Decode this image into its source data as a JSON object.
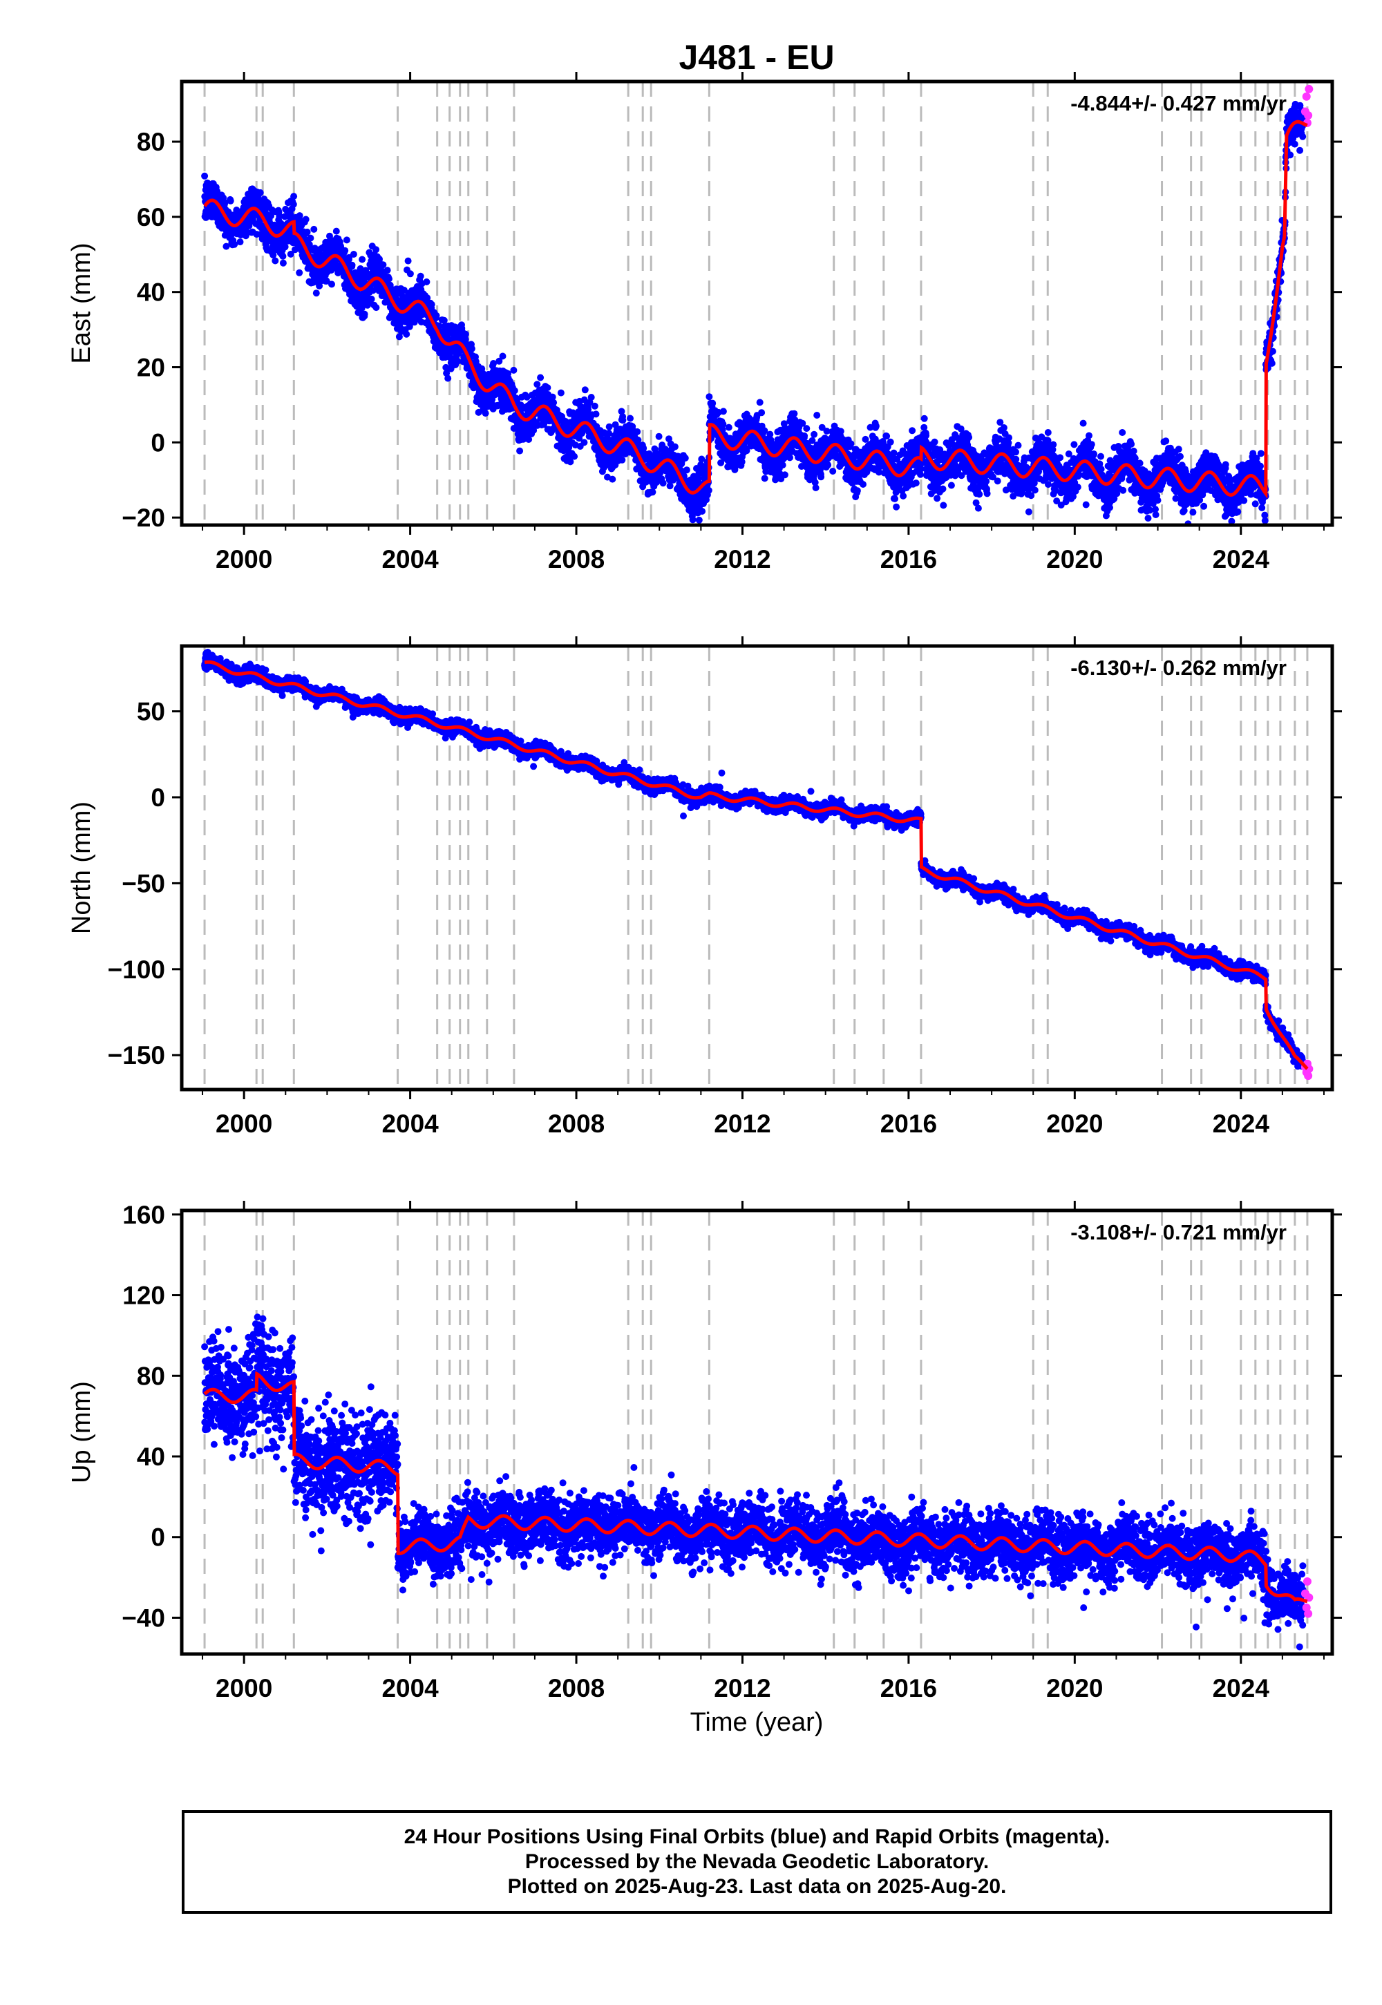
{
  "title": "J481 - EU",
  "xlabel": "Time (year)",
  "footer": {
    "line1": "24 Hour Positions Using Final Orbits (blue) and Rapid Orbits (magenta).",
    "line2": "Processed by the Nevada Geodetic Laboratory.",
    "line3": "Plotted on 2025-Aug-23. Last data on 2025-Aug-20."
  },
  "colors": {
    "final_orbits": "#0000ff",
    "rapid_orbits": "#ff33ff",
    "model": "#ff0000",
    "event_lines": "#bbbbbb"
  },
  "chart_data": [
    {
      "type": "scatter",
      "name": "east",
      "ylabel": "East (mm)",
      "rate_label": "-4.844+/- 0.427 mm/yr",
      "xlim": [
        1998.5,
        2026.2
      ],
      "ylim": [
        -22,
        96
      ],
      "xticks": [
        2000,
        2004,
        2008,
        2012,
        2016,
        2020,
        2024
      ],
      "yticks": [
        -20,
        0,
        20,
        40,
        60,
        80
      ],
      "event_lines": [
        1999.05,
        2000.3,
        2000.45,
        2001.2,
        2003.7,
        2004.65,
        2004.95,
        2005.2,
        2005.4,
        2005.85,
        2006.5,
        2009.25,
        2009.6,
        2009.8,
        2011.2,
        2014.2,
        2014.7,
        2015.4,
        2016.3,
        2019.0,
        2019.35,
        2022.1,
        2022.8,
        2023.05,
        2024.0,
        2024.35,
        2024.65,
        2024.95,
        2025.3,
        2025.6
      ],
      "model_trend": [
        [
          1999.05,
          62
        ],
        [
          2000.45,
          59
        ],
        [
          2001.2,
          56
        ],
        [
          2001.2,
          53
        ],
        [
          2003.7,
          38
        ],
        [
          2004.65,
          32
        ],
        [
          2004.95,
          27
        ],
        [
          2005.4,
          21
        ],
        [
          2005.85,
          16
        ],
        [
          2006.5,
          10
        ],
        [
          2009.25,
          -2
        ],
        [
          2011.2,
          -13
        ],
        [
          2011.2,
          2
        ],
        [
          2016.3,
          -7
        ],
        [
          2016.3,
          -4
        ],
        [
          2024.6,
          -12
        ],
        [
          2024.6,
          22
        ],
        [
          2025.0,
          52
        ],
        [
          2025.05,
          54
        ],
        [
          2025.1,
          80
        ],
        [
          2025.6,
          86
        ]
      ],
      "seasonal_amplitude": 3.5,
      "scatter_sd": 2.8,
      "rapid_points": [
        [
          2025.55,
          88
        ],
        [
          2025.58,
          92
        ],
        [
          2025.6,
          85
        ],
        [
          2025.62,
          87
        ],
        [
          2025.64,
          94
        ]
      ]
    },
    {
      "type": "scatter",
      "name": "north",
      "ylabel": "North (mm)",
      "rate_label": "-6.130+/- 0.262 mm/yr",
      "xlim": [
        1998.5,
        2026.2
      ],
      "ylim": [
        -170,
        88
      ],
      "xticks": [
        2000,
        2004,
        2008,
        2012,
        2016,
        2020,
        2024
      ],
      "yticks": [
        -150,
        -100,
        -50,
        0,
        50
      ],
      "event_lines": [
        1999.05,
        2000.3,
        2000.45,
        2001.2,
        2003.7,
        2004.65,
        2004.95,
        2005.2,
        2005.4,
        2005.85,
        2006.5,
        2009.25,
        2009.6,
        2009.8,
        2011.2,
        2014.2,
        2014.7,
        2015.4,
        2016.3,
        2019.0,
        2019.35,
        2022.1,
        2022.8,
        2023.05,
        2024.0,
        2024.35,
        2024.65,
        2024.95,
        2025.3,
        2025.6
      ],
      "model_trend": [
        [
          1999.05,
          78
        ],
        [
          2004.65,
          43
        ],
        [
          2011.0,
          0
        ],
        [
          2011.2,
          1
        ],
        [
          2016.3,
          -14
        ],
        [
          2016.3,
          -42
        ],
        [
          2024.6,
          -105
        ],
        [
          2024.6,
          -122
        ],
        [
          2025.3,
          -152
        ],
        [
          2025.6,
          -157
        ]
      ],
      "seasonal_amplitude": 2.0,
      "scatter_sd": 2.0,
      "rapid_points": [
        [
          2025.55,
          -157
        ],
        [
          2025.58,
          -160
        ],
        [
          2025.6,
          -155
        ],
        [
          2025.62,
          -162
        ],
        [
          2025.64,
          -158
        ]
      ]
    },
    {
      "type": "scatter",
      "name": "up",
      "ylabel": "Up (mm)",
      "rate_label": "-3.108+/- 0.721 mm/yr",
      "xlim": [
        1998.5,
        2026.2
      ],
      "ylim": [
        -58,
        162
      ],
      "xticks": [
        2000,
        2004,
        2008,
        2012,
        2016,
        2020,
        2024
      ],
      "yticks": [
        -40,
        0,
        40,
        80,
        120,
        160
      ],
      "event_lines": [
        1999.05,
        2000.3,
        2000.45,
        2001.2,
        2003.7,
        2004.65,
        2004.95,
        2005.2,
        2005.4,
        2005.85,
        2006.5,
        2009.25,
        2009.6,
        2009.8,
        2011.2,
        2014.2,
        2014.7,
        2015.4,
        2016.3,
        2019.0,
        2019.35,
        2022.1,
        2022.8,
        2023.05,
        2024.0,
        2024.35,
        2024.65,
        2024.95,
        2025.3,
        2025.6
      ],
      "model_trend": [
        [
          1999.05,
          70
        ],
        [
          2000.3,
          70
        ],
        [
          2000.3,
          78
        ],
        [
          2001.2,
          74
        ],
        [
          2001.2,
          38
        ],
        [
          2003.7,
          34
        ],
        [
          2003.7,
          -5
        ],
        [
          2005.2,
          -3
        ],
        [
          2005.4,
          8
        ],
        [
          2009.25,
          5
        ],
        [
          2024.0,
          -9
        ],
        [
          2024.6,
          -12
        ],
        [
          2024.6,
          -22
        ],
        [
          2025.3,
          -34
        ],
        [
          2025.6,
          -30
        ]
      ],
      "seasonal_amplitude": 4.0,
      "scatter_sd": 7.5,
      "rapid_points": [
        [
          2025.55,
          -28
        ],
        [
          2025.58,
          -35
        ],
        [
          2025.6,
          -22
        ],
        [
          2025.62,
          -38
        ],
        [
          2025.64,
          -30
        ]
      ]
    }
  ]
}
